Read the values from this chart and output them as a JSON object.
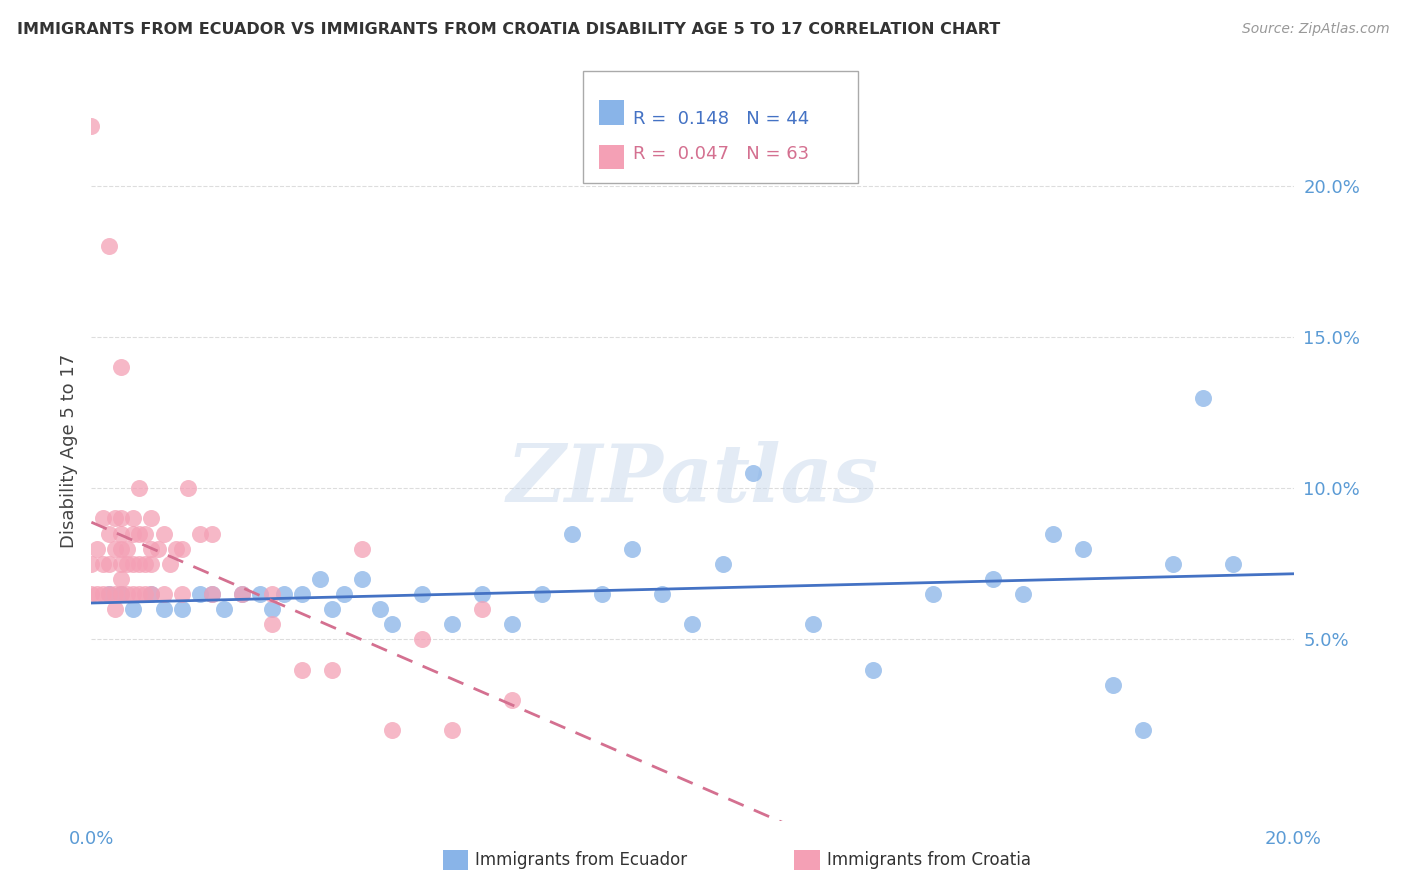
{
  "title": "IMMIGRANTS FROM ECUADOR VS IMMIGRANTS FROM CROATIA DISABILITY AGE 5 TO 17 CORRELATION CHART",
  "source": "Source: ZipAtlas.com",
  "ylabel": "Disability Age 5 to 17",
  "ecuador_color": "#89b4e8",
  "croatia_color": "#f4a0b5",
  "ecuador_line_color": "#4472c4",
  "croatia_line_color": "#d47090",
  "ecuador_R": 0.148,
  "ecuador_N": 44,
  "croatia_R": 0.047,
  "croatia_N": 63,
  "ecuador_scatter_x": [
    0.003,
    0.005,
    0.007,
    0.01,
    0.012,
    0.015,
    0.018,
    0.02,
    0.022,
    0.025,
    0.028,
    0.03,
    0.032,
    0.035,
    0.038,
    0.04,
    0.042,
    0.045,
    0.048,
    0.05,
    0.055,
    0.06,
    0.065,
    0.07,
    0.075,
    0.08,
    0.085,
    0.09,
    0.095,
    0.1,
    0.105,
    0.11,
    0.12,
    0.13,
    0.14,
    0.15,
    0.155,
    0.16,
    0.165,
    0.17,
    0.175,
    0.18,
    0.185,
    0.19
  ],
  "ecuador_scatter_y": [
    0.065,
    0.065,
    0.06,
    0.065,
    0.06,
    0.06,
    0.065,
    0.065,
    0.06,
    0.065,
    0.065,
    0.06,
    0.065,
    0.065,
    0.07,
    0.06,
    0.065,
    0.07,
    0.06,
    0.055,
    0.065,
    0.055,
    0.065,
    0.055,
    0.065,
    0.085,
    0.065,
    0.08,
    0.065,
    0.055,
    0.075,
    0.105,
    0.055,
    0.04,
    0.065,
    0.07,
    0.065,
    0.085,
    0.08,
    0.035,
    0.02,
    0.075,
    0.13,
    0.075
  ],
  "croatia_scatter_x": [
    0.0,
    0.0,
    0.0,
    0.001,
    0.001,
    0.002,
    0.002,
    0.002,
    0.003,
    0.003,
    0.003,
    0.004,
    0.004,
    0.004,
    0.004,
    0.005,
    0.005,
    0.005,
    0.005,
    0.005,
    0.005,
    0.006,
    0.006,
    0.006,
    0.007,
    0.007,
    0.007,
    0.007,
    0.008,
    0.008,
    0.008,
    0.008,
    0.009,
    0.009,
    0.009,
    0.01,
    0.01,
    0.01,
    0.011,
    0.012,
    0.012,
    0.013,
    0.014,
    0.015,
    0.015,
    0.016,
    0.018,
    0.02,
    0.02,
    0.025,
    0.03,
    0.03,
    0.035,
    0.04,
    0.045,
    0.05,
    0.055,
    0.06,
    0.065,
    0.07,
    0.003,
    0.005,
    0.01
  ],
  "croatia_scatter_y": [
    0.065,
    0.075,
    0.22,
    0.065,
    0.08,
    0.065,
    0.075,
    0.09,
    0.065,
    0.075,
    0.085,
    0.06,
    0.065,
    0.08,
    0.09,
    0.065,
    0.07,
    0.075,
    0.08,
    0.085,
    0.09,
    0.065,
    0.075,
    0.08,
    0.065,
    0.075,
    0.085,
    0.09,
    0.065,
    0.075,
    0.085,
    0.1,
    0.065,
    0.075,
    0.085,
    0.065,
    0.075,
    0.09,
    0.08,
    0.065,
    0.085,
    0.075,
    0.08,
    0.065,
    0.08,
    0.1,
    0.085,
    0.065,
    0.085,
    0.065,
    0.065,
    0.055,
    0.04,
    0.04,
    0.08,
    0.02,
    0.05,
    0.02,
    0.06,
    0.03,
    0.18,
    0.14,
    0.08
  ],
  "xlim": [
    0.0,
    0.2
  ],
  "ylim": [
    -0.01,
    0.235
  ],
  "yticks": [
    0.05,
    0.1,
    0.15,
    0.2
  ],
  "ytick_labels": [
    "5.0%",
    "10.0%",
    "15.0%",
    "20.0%"
  ],
  "watermark": "ZIPatlas",
  "background_color": "#ffffff",
  "grid_color": "#dddddd"
}
